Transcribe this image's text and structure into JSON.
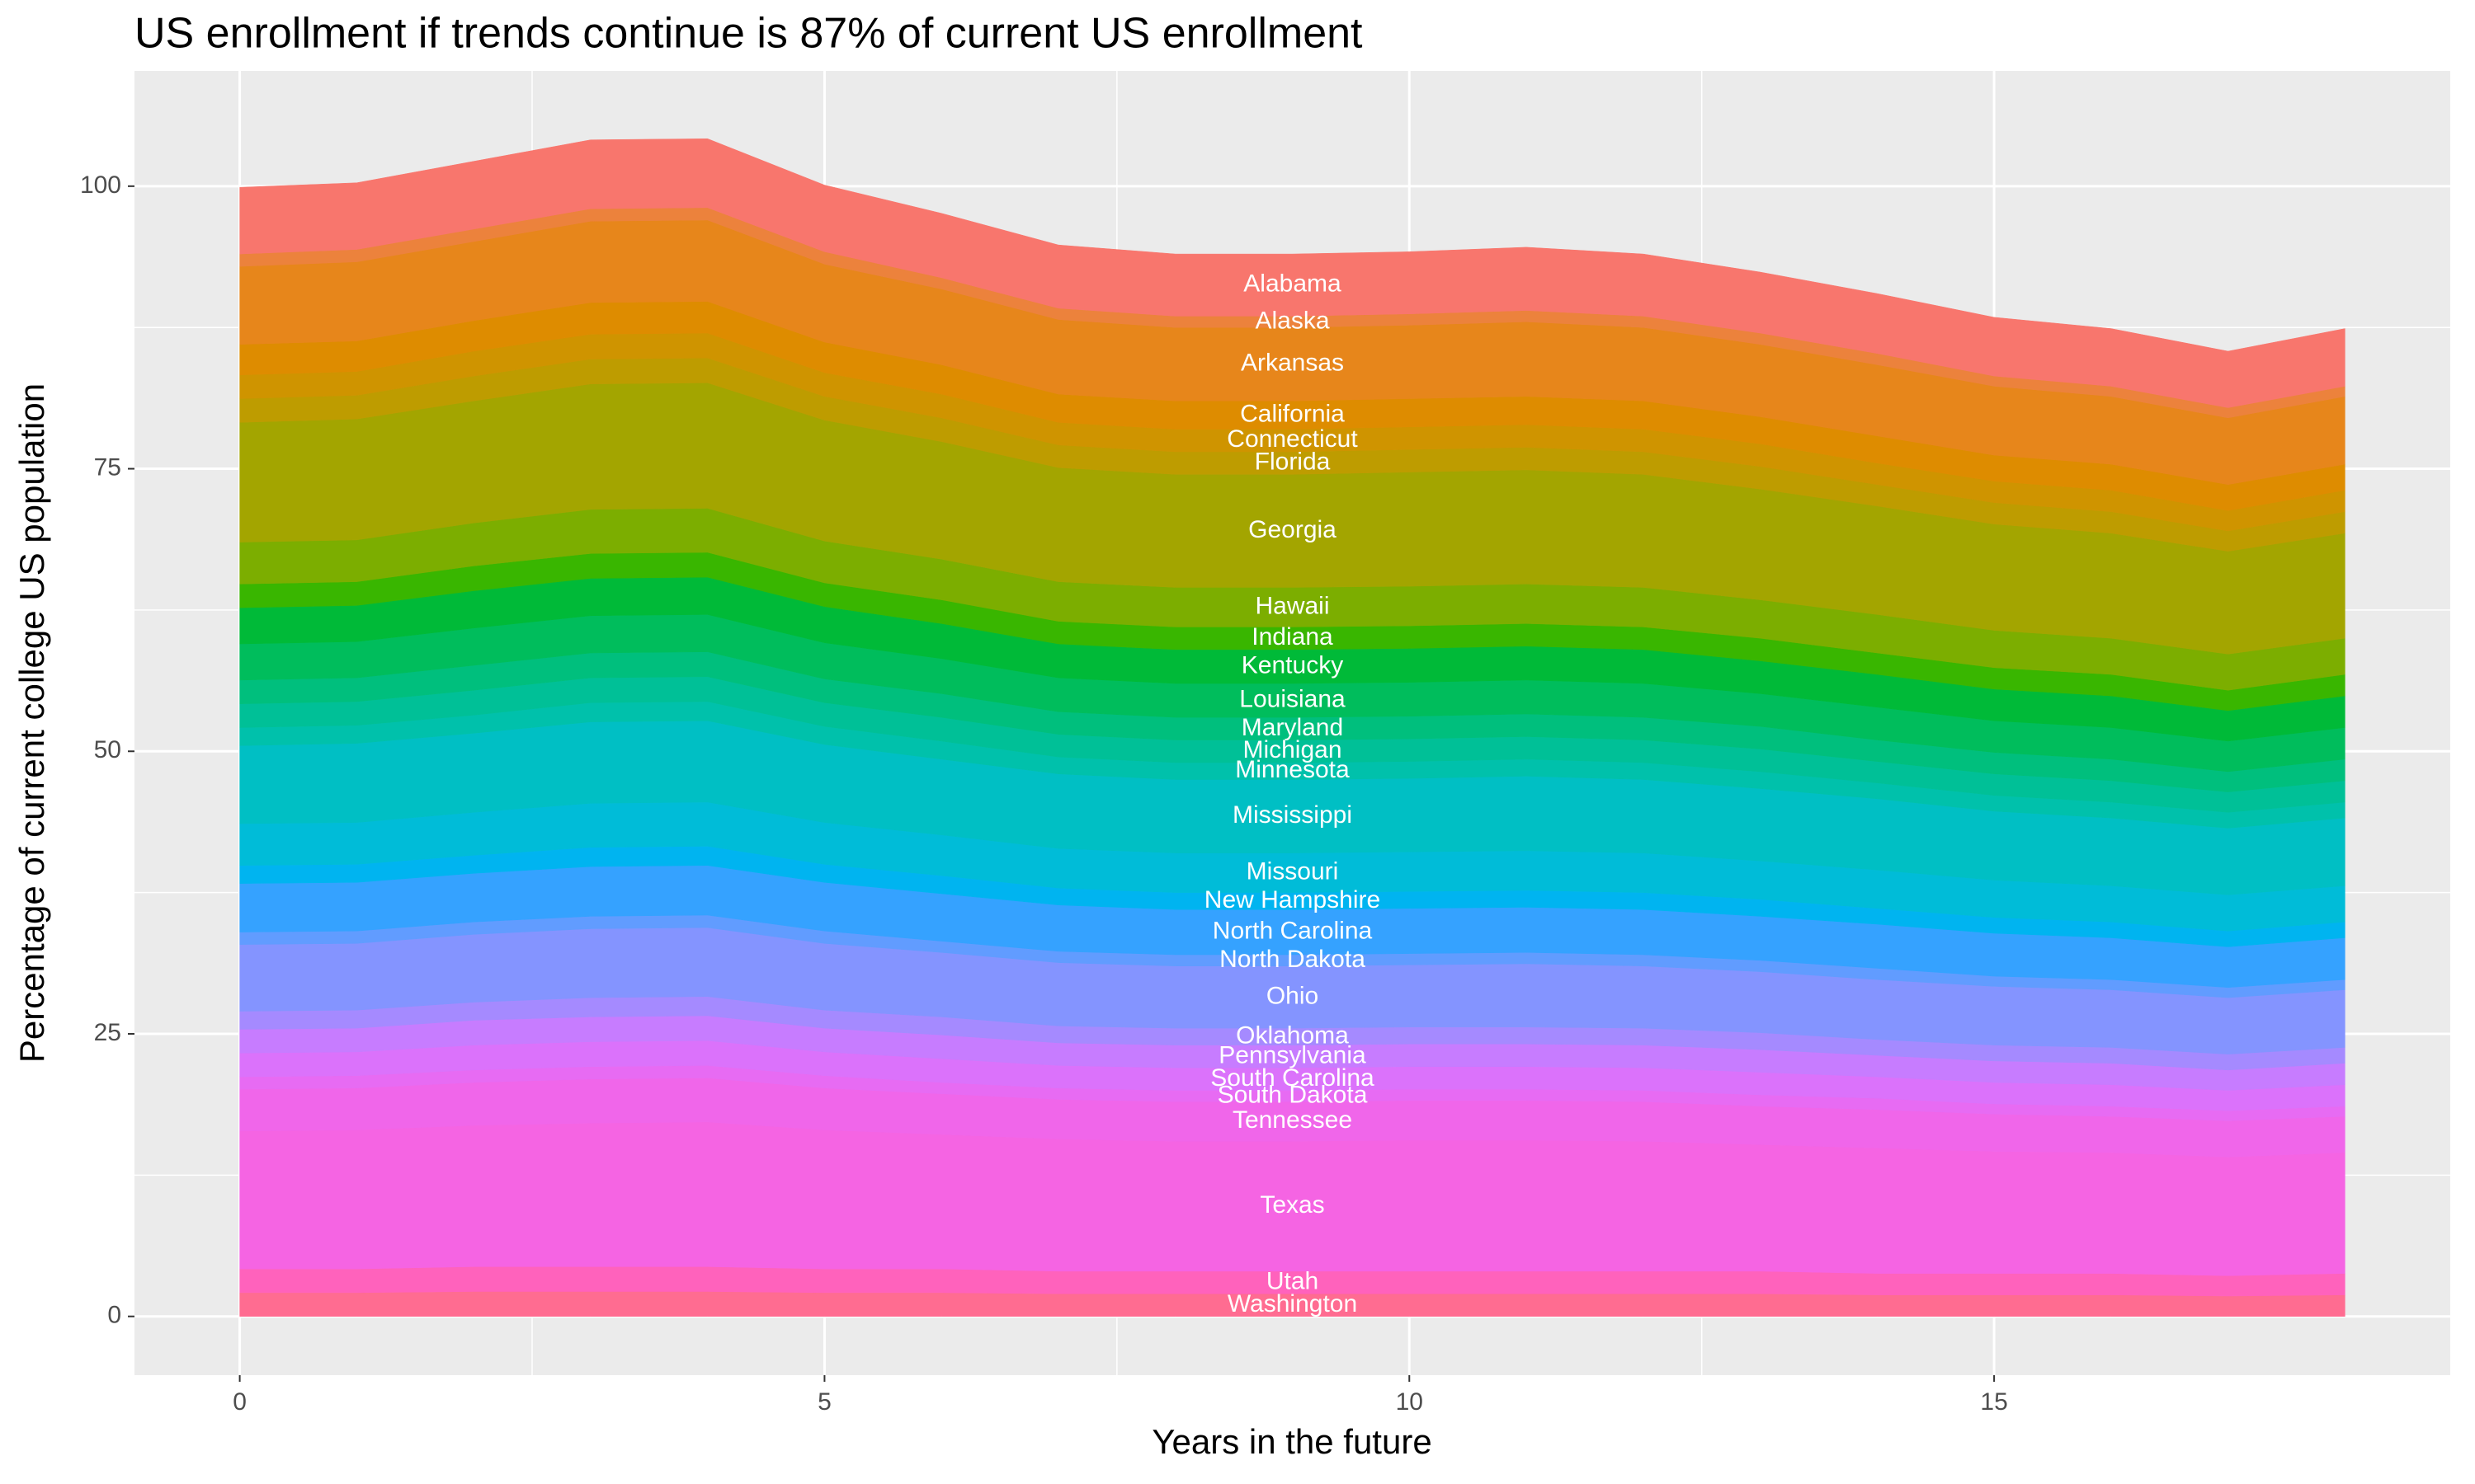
{
  "chart_data": {
    "type": "stacked_area",
    "title": "US enrollment if trends continue is 87% of current US enrollment",
    "x_label": "Years in the future",
    "y_label": "Percentage of current college US population",
    "x": [
      0,
      1,
      2,
      3,
      4,
      5,
      6,
      7,
      8,
      9,
      10,
      11,
      12,
      13,
      14,
      15,
      16,
      17,
      18
    ],
    "xlim": [
      -0.9,
      18.9
    ],
    "xticks": [
      0,
      5,
      10,
      15
    ],
    "ylim": [
      -5.2,
      110.2
    ],
    "yticks": [
      0,
      25,
      50,
      75,
      100
    ],
    "grid": true,
    "series": [
      {
        "name": "Alabama",
        "color": "#F8766D",
        "values": [
          5.9,
          5.9,
          6.0,
          6.1,
          6.1,
          5.9,
          5.7,
          5.6,
          5.5,
          5.5,
          5.5,
          5.6,
          5.5,
          5.4,
          5.3,
          5.2,
          5.1,
          5.0,
          5.1
        ]
      },
      {
        "name": "Alaska",
        "color": "#EC823C",
        "values": [
          1.1,
          1.1,
          1.1,
          1.1,
          1.1,
          1.1,
          1.0,
          1.0,
          1.0,
          1.0,
          1.0,
          1.0,
          1.0,
          1.0,
          1.0,
          0.9,
          0.9,
          0.9,
          0.9
        ]
      },
      {
        "name": "Arkansas",
        "color": "#E7861B",
        "values": [
          6.9,
          7.0,
          7.0,
          7.2,
          7.2,
          6.9,
          6.7,
          6.6,
          6.5,
          6.5,
          6.5,
          6.6,
          6.5,
          6.4,
          6.3,
          6.1,
          6.0,
          5.9,
          6.0
        ]
      },
      {
        "name": "California",
        "color": "#DE8C00",
        "values": [
          2.7,
          2.7,
          2.7,
          2.8,
          2.8,
          2.7,
          2.6,
          2.5,
          2.5,
          2.5,
          2.5,
          2.5,
          2.5,
          2.4,
          2.4,
          2.3,
          2.3,
          2.3,
          2.3
        ]
      },
      {
        "name": "Connecticut",
        "color": "#CF9400",
        "values": [
          2.1,
          2.1,
          2.2,
          2.2,
          2.2,
          2.1,
          2.1,
          2.0,
          2.0,
          2.0,
          2.0,
          2.0,
          2.0,
          2.0,
          1.9,
          1.9,
          1.9,
          1.8,
          1.9
        ]
      },
      {
        "name": "Florida",
        "color": "#BE9C00",
        "values": [
          2.1,
          2.1,
          2.2,
          2.2,
          2.2,
          2.1,
          2.1,
          2.0,
          2.0,
          2.0,
          2.0,
          2.0,
          2.0,
          2.0,
          1.9,
          1.9,
          1.9,
          1.8,
          1.9
        ]
      },
      {
        "name": "Georgia",
        "color": "#A3A500",
        "values": [
          10.6,
          10.7,
          10.8,
          11.1,
          11.1,
          10.7,
          10.4,
          10.1,
          10.0,
          10.0,
          10.1,
          10.1,
          10.0,
          9.8,
          9.6,
          9.4,
          9.3,
          9.1,
          9.3
        ]
      },
      {
        "name": "Hawaii",
        "color": "#7CAE00",
        "values": [
          3.7,
          3.7,
          3.8,
          3.9,
          3.9,
          3.7,
          3.6,
          3.5,
          3.5,
          3.5,
          3.5,
          3.5,
          3.5,
          3.4,
          3.4,
          3.3,
          3.2,
          3.2,
          3.2
        ]
      },
      {
        "name": "Indiana",
        "color": "#39B600",
        "values": [
          2.1,
          2.1,
          2.2,
          2.2,
          2.2,
          2.1,
          2.1,
          2.0,
          2.0,
          2.0,
          2.0,
          2.0,
          2.0,
          2.0,
          1.9,
          1.9,
          1.9,
          1.8,
          1.9
        ]
      },
      {
        "name": "Kentucky",
        "color": "#00BA38",
        "values": [
          3.2,
          3.2,
          3.3,
          3.3,
          3.3,
          3.2,
          3.1,
          3.0,
          3.0,
          3.0,
          3.0,
          3.0,
          3.0,
          2.9,
          2.9,
          2.8,
          2.8,
          2.7,
          2.8
        ]
      },
      {
        "name": "Louisiana",
        "color": "#00BD5C",
        "values": [
          3.2,
          3.2,
          3.3,
          3.3,
          3.3,
          3.2,
          3.1,
          3.0,
          3.0,
          3.0,
          3.0,
          3.0,
          3.0,
          2.9,
          2.9,
          2.8,
          2.8,
          2.7,
          2.8
        ]
      },
      {
        "name": "Maryland",
        "color": "#00BF7D",
        "values": [
          2.1,
          2.1,
          2.2,
          2.2,
          2.2,
          2.1,
          2.1,
          2.0,
          2.0,
          2.0,
          2.0,
          2.0,
          2.0,
          2.0,
          1.9,
          1.9,
          1.9,
          1.8,
          1.9
        ]
      },
      {
        "name": "Michigan",
        "color": "#00C097",
        "values": [
          2.1,
          2.1,
          2.2,
          2.2,
          2.2,
          2.1,
          2.1,
          2.0,
          2.0,
          2.0,
          2.0,
          2.0,
          2.0,
          2.0,
          1.9,
          1.9,
          1.9,
          1.8,
          1.9
        ]
      },
      {
        "name": "Minnesota",
        "color": "#00C1AB",
        "values": [
          1.6,
          1.6,
          1.6,
          1.7,
          1.7,
          1.6,
          1.6,
          1.5,
          1.5,
          1.5,
          1.5,
          1.5,
          1.5,
          1.5,
          1.4,
          1.4,
          1.4,
          1.4,
          1.4
        ]
      },
      {
        "name": "Mississippi",
        "color": "#00BFC4",
        "values": [
          6.9,
          7.0,
          7.0,
          7.2,
          7.2,
          6.9,
          6.7,
          6.6,
          6.5,
          6.5,
          6.5,
          6.6,
          6.5,
          6.4,
          6.3,
          6.1,
          6.0,
          5.9,
          6.0
        ]
      },
      {
        "name": "Missouri",
        "color": "#00BCD8",
        "values": [
          3.7,
          3.7,
          3.8,
          3.9,
          3.9,
          3.7,
          3.6,
          3.5,
          3.5,
          3.5,
          3.5,
          3.5,
          3.5,
          3.4,
          3.4,
          3.3,
          3.2,
          3.2,
          3.2
        ]
      },
      {
        "name": "New Hampshire",
        "color": "#00B4F0",
        "values": [
          1.6,
          1.6,
          1.6,
          1.7,
          1.7,
          1.6,
          1.6,
          1.5,
          1.5,
          1.5,
          1.5,
          1.5,
          1.5,
          1.5,
          1.4,
          1.4,
          1.4,
          1.4,
          1.4
        ]
      },
      {
        "name": "North Carolina",
        "color": "#35A2FF",
        "values": [
          4.3,
          4.3,
          4.3,
          4.4,
          4.4,
          4.3,
          4.2,
          4.1,
          4.0,
          4.0,
          4.0,
          4.0,
          4.0,
          3.9,
          3.9,
          3.8,
          3.7,
          3.6,
          3.7
        ]
      },
      {
        "name": "North Dakota",
        "color": "#619CFF",
        "values": [
          1.1,
          1.1,
          1.1,
          1.1,
          1.1,
          1.1,
          1.0,
          1.0,
          1.0,
          1.0,
          1.0,
          1.0,
          1.0,
          1.0,
          1.0,
          0.9,
          0.9,
          0.9,
          0.9
        ]
      },
      {
        "name": "Ohio",
        "color": "#8494FF",
        "values": [
          5.9,
          5.9,
          6.0,
          6.1,
          6.1,
          5.9,
          5.7,
          5.6,
          5.5,
          5.5,
          5.5,
          5.6,
          5.5,
          5.4,
          5.3,
          5.2,
          5.1,
          5.0,
          5.1
        ]
      },
      {
        "name": "Oklahoma",
        "color": "#A58AFF",
        "values": [
          1.6,
          1.6,
          1.6,
          1.7,
          1.7,
          1.6,
          1.6,
          1.5,
          1.5,
          1.5,
          1.5,
          1.5,
          1.5,
          1.5,
          1.4,
          1.4,
          1.4,
          1.4,
          1.4
        ]
      },
      {
        "name": "Pennsylvania",
        "color": "#C77CFF",
        "values": [
          2.1,
          2.1,
          2.2,
          2.2,
          2.2,
          2.1,
          2.1,
          2.0,
          2.0,
          2.0,
          2.0,
          2.0,
          2.0,
          2.0,
          1.9,
          1.9,
          1.9,
          1.8,
          1.9
        ]
      },
      {
        "name": "South Carolina",
        "color": "#DB72FB",
        "values": [
          2.1,
          2.1,
          2.2,
          2.2,
          2.2,
          2.1,
          2.1,
          2.0,
          2.0,
          2.0,
          2.0,
          2.0,
          2.0,
          2.0,
          1.9,
          1.9,
          1.9,
          1.8,
          1.9
        ]
      },
      {
        "name": "South Dakota",
        "color": "#E76BF3",
        "values": [
          1.1,
          1.1,
          1.1,
          1.1,
          1.1,
          1.1,
          1.0,
          1.0,
          1.0,
          1.0,
          1.0,
          1.0,
          1.0,
          1.0,
          1.0,
          0.9,
          0.9,
          0.9,
          0.9
        ]
      },
      {
        "name": "Tennessee",
        "color": "#F066EA",
        "values": [
          3.7,
          3.7,
          3.8,
          3.9,
          3.9,
          3.7,
          3.6,
          3.5,
          3.5,
          3.5,
          3.5,
          3.5,
          3.5,
          3.4,
          3.4,
          3.3,
          3.2,
          3.2,
          3.2
        ]
      },
      {
        "name": "Texas",
        "color": "#F564E3",
        "values": [
          12.2,
          12.3,
          12.5,
          12.7,
          12.8,
          12.3,
          11.9,
          11.7,
          11.5,
          11.5,
          11.6,
          11.6,
          11.5,
          11.2,
          11.1,
          10.8,
          10.7,
          10.5,
          10.7
        ]
      },
      {
        "name": "Utah",
        "color": "#FF62BC",
        "values": [
          2.1,
          2.1,
          2.2,
          2.2,
          2.2,
          2.1,
          2.1,
          2.0,
          2.0,
          2.0,
          2.0,
          2.0,
          2.0,
          2.0,
          1.9,
          1.9,
          1.9,
          1.8,
          1.9
        ]
      },
      {
        "name": "Washington",
        "color": "#FF6C91",
        "values": [
          2.1,
          2.1,
          2.2,
          2.2,
          2.2,
          2.1,
          2.1,
          2.0,
          2.0,
          2.0,
          2.0,
          2.0,
          2.0,
          2.0,
          1.9,
          1.9,
          1.9,
          1.8,
          1.9
        ]
      }
    ]
  }
}
